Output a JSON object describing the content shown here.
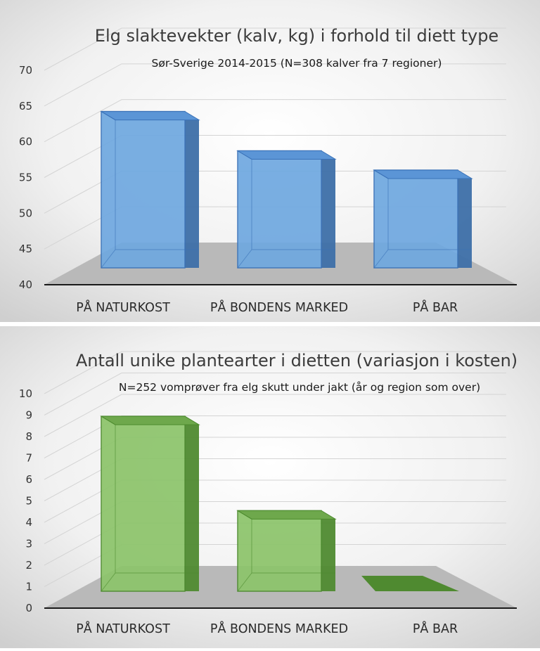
{
  "chart_data": [
    {
      "type": "bar",
      "title": "Elg slaktevekter (kalv, kg) i forhold til diett type",
      "subtitle": "Sør-Sverige 2014-2015 (N=308 kalver fra 7 regioner)",
      "categories": [
        "PÅ NATURKOST",
        "PÅ BONDENS MARKED",
        "PÅ BAR"
      ],
      "values": [
        60.5,
        55.0,
        52.3
      ],
      "ylim": [
        40,
        70
      ],
      "yticks": [
        40,
        45,
        50,
        55,
        60,
        65,
        70
      ],
      "grid": true,
      "style": "3d",
      "colors": {
        "front": "#6fa8e0",
        "side": "#3d6fa8",
        "top": "#5b95d6",
        "edge": "#3a72b8"
      }
    },
    {
      "type": "bar",
      "title": "Antall unike plantearter i dietten (variasjon i kosten)",
      "subtitle": "N=252 vomprøver fra elg skutt under jakt (år og region som over)",
      "categories": [
        "PÅ NATURKOST",
        "PÅ BONDENS MARKED",
        "PÅ BAR"
      ],
      "values": [
        7.7,
        3.3,
        0.0
      ],
      "ylim": [
        0,
        10
      ],
      "yticks": [
        0,
        1,
        2,
        3,
        4,
        5,
        6,
        7,
        8,
        9,
        10
      ],
      "grid": true,
      "style": "3d",
      "colors": {
        "front": "#8cc46a",
        "side": "#4f8a30",
        "top": "#6ea84c",
        "edge": "#4c8a2e"
      }
    }
  ]
}
